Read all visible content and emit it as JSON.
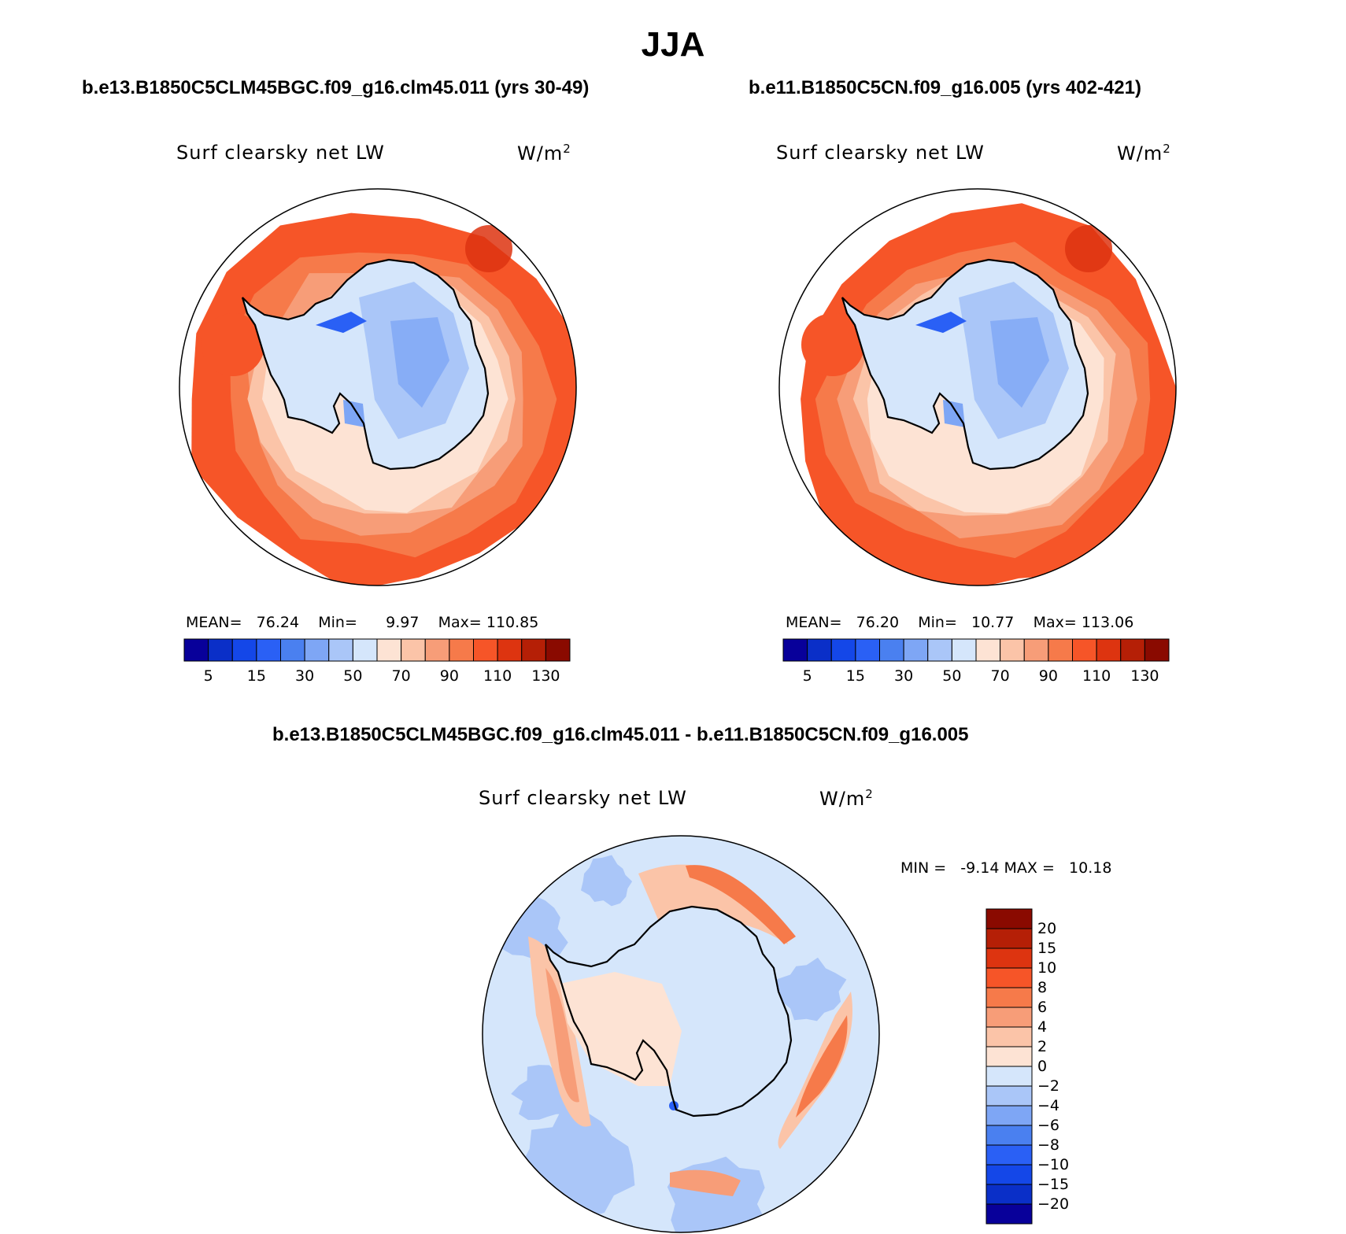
{
  "title": "JJA",
  "chart_data": [
    {
      "type": "heatmap",
      "case_title": "b.e13.B1850C5CLM45BGC.f09_g16.clm45.011 (yrs 30-49)",
      "variable": "Surf clearsky net LW",
      "units_base": "W/m",
      "units_exp": "2",
      "projection": "south polar stereographic",
      "stats": {
        "mean_label": "MEAN=",
        "mean": "76.24",
        "min_label": "Min=",
        "min": "9.97",
        "max_label": "Max=",
        "max": "110.85"
      },
      "colorbar": {
        "levels": [
          5,
          10,
          15,
          20,
          30,
          40,
          50,
          60,
          70,
          80,
          90,
          100,
          110,
          120,
          130
        ],
        "tick_labels": [
          "5",
          "15",
          "30",
          "50",
          "70",
          "90",
          "110",
          "130"
        ],
        "colors": [
          "#08009a",
          "#0a2fc8",
          "#1447e8",
          "#2a60f5",
          "#4a80f0",
          "#7ea6f5",
          "#aac6f8",
          "#d5e6fb",
          "#fde3d4",
          "#fbc4a8",
          "#f79d78",
          "#f67a4a",
          "#f65528",
          "#dd3410",
          "#b51f06",
          "#8a0a00"
        ]
      }
    },
    {
      "type": "heatmap",
      "case_title": "b.e11.B1850C5CN.f09_g16.005 (yrs 402-421)",
      "variable": "Surf clearsky net LW",
      "units_base": "W/m",
      "units_exp": "2",
      "projection": "south polar stereographic",
      "stats": {
        "mean_label": "MEAN=",
        "mean": "76.20",
        "min_label": "Min=",
        "min": "10.77",
        "max_label": "Max=",
        "max": "113.06"
      },
      "colorbar": {
        "levels": [
          5,
          10,
          15,
          20,
          30,
          40,
          50,
          60,
          70,
          80,
          90,
          100,
          110,
          120,
          130
        ],
        "tick_labels": [
          "5",
          "15",
          "30",
          "50",
          "70",
          "90",
          "110",
          "130"
        ],
        "colors": [
          "#08009a",
          "#0a2fc8",
          "#1447e8",
          "#2a60f5",
          "#4a80f0",
          "#7ea6f5",
          "#aac6f8",
          "#d5e6fb",
          "#fde3d4",
          "#fbc4a8",
          "#f79d78",
          "#f67a4a",
          "#f65528",
          "#dd3410",
          "#b51f06",
          "#8a0a00"
        ]
      }
    },
    {
      "type": "heatmap",
      "case_title": "b.e13.B1850C5CLM45BGC.f09_g16.clm45.011 - b.e11.B1850C5CN.f09_g16.005",
      "variable": "Surf clearsky net LW",
      "units_base": "W/m",
      "units_exp": "2",
      "projection": "south polar stereographic",
      "stats": {
        "min_label": "MIN =",
        "min": "-9.14",
        "max_label": "MAX =",
        "max": "10.18"
      },
      "colorbar": {
        "levels": [
          -20,
          -15,
          -10,
          -8,
          -6,
          -4,
          -2,
          0,
          2,
          4,
          6,
          8,
          10,
          15,
          20
        ],
        "tick_labels": [
          "20",
          "15",
          "10",
          "8",
          "6",
          "4",
          "2",
          "0",
          "−2",
          "−4",
          "−6",
          "−8",
          "−10",
          "−15",
          "−20"
        ],
        "colors": [
          "#08009a",
          "#0a2fc8",
          "#1447e8",
          "#2a60f5",
          "#4a80f0",
          "#7ea6f5",
          "#aac6f8",
          "#d5e6fb",
          "#fde3d4",
          "#fbc4a8",
          "#f79d78",
          "#f67a4a",
          "#f65528",
          "#dd3410",
          "#b51f06",
          "#8a0a00"
        ]
      }
    }
  ]
}
